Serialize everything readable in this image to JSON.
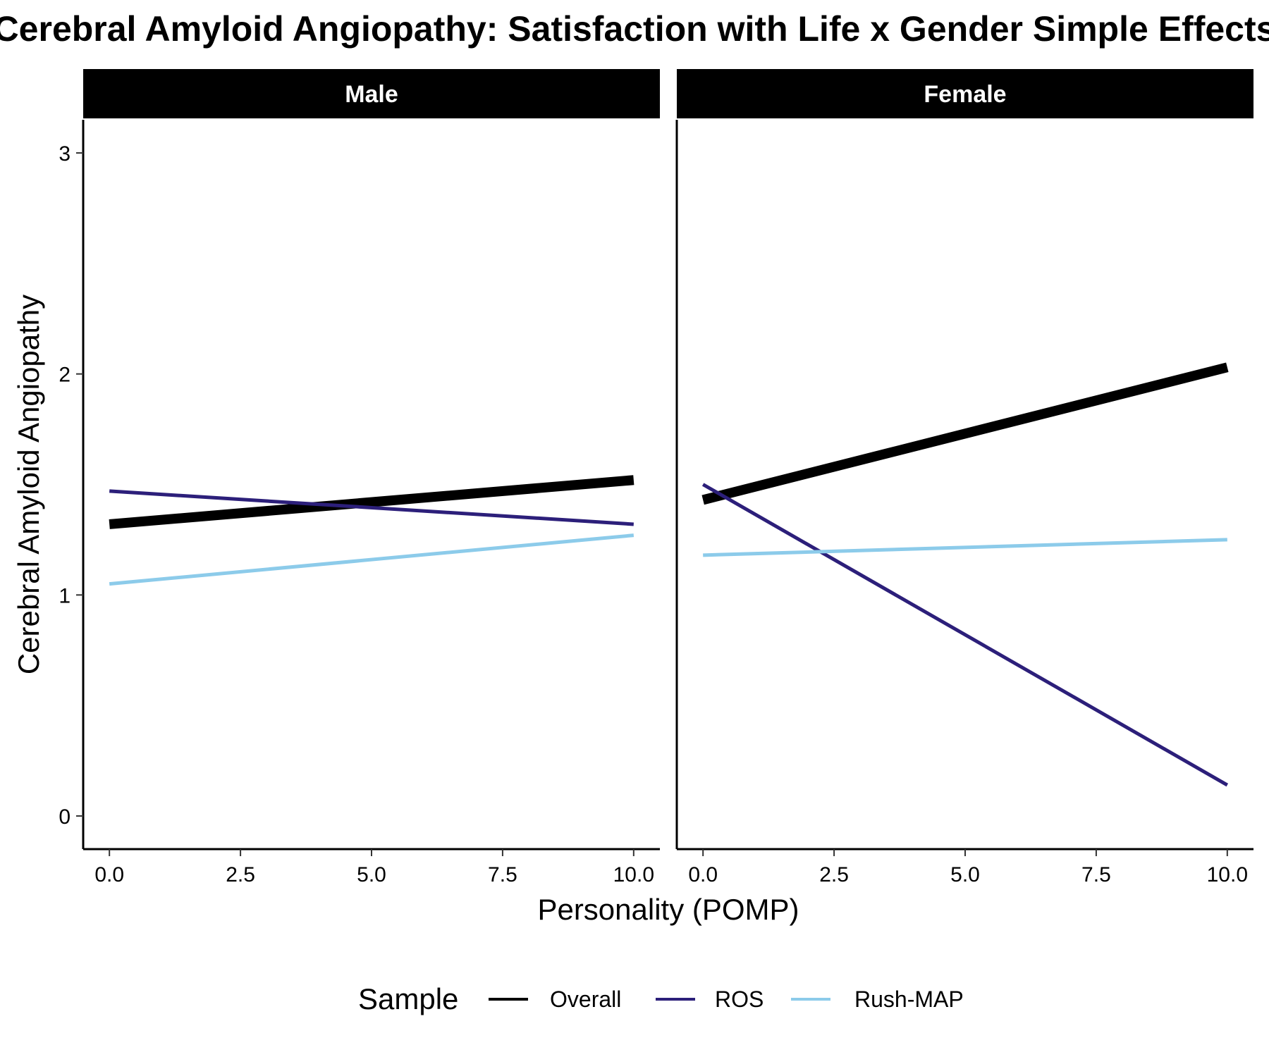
{
  "chart_data": {
    "type": "line",
    "title": "Cerebral Amyloid Angiopathy: Satisfaction with Life x Gender Simple Effects",
    "xlabel": "Personality (POMP)",
    "ylabel": "Cerebral Amyloid Angiopathy",
    "xlim": [
      -0.5,
      10.5
    ],
    "ylim": [
      -0.15,
      3.15
    ],
    "xticks": [
      0,
      2.5,
      5,
      7.5,
      10
    ],
    "xtick_labels": [
      "0.0",
      "2.5",
      "5.0",
      "7.5",
      "10.0"
    ],
    "yticks": [
      0,
      1,
      2,
      3
    ],
    "ytick_labels": [
      "0",
      "1",
      "2",
      "3"
    ],
    "grid": false,
    "legend": {
      "title": "Sample",
      "placement": "bottom",
      "entries": [
        "Overall",
        "ROS",
        "Rush-MAP"
      ]
    },
    "series_colors": {
      "Overall": "#000000",
      "ROS": "#2c1f7a",
      "Rush-MAP": "#8ccbea"
    },
    "panels": [
      {
        "label": "Male",
        "series": [
          {
            "name": "Overall",
            "x": [
              0,
              10
            ],
            "y": [
              1.32,
              1.52
            ]
          },
          {
            "name": "ROS",
            "x": [
              0,
              10
            ],
            "y": [
              1.47,
              1.32
            ]
          },
          {
            "name": "Rush-MAP",
            "x": [
              0,
              10
            ],
            "y": [
              1.05,
              1.27
            ]
          }
        ]
      },
      {
        "label": "Female",
        "series": [
          {
            "name": "Overall",
            "x": [
              0,
              10
            ],
            "y": [
              1.43,
              2.03
            ]
          },
          {
            "name": "ROS",
            "x": [
              0,
              10
            ],
            "y": [
              1.5,
              0.14
            ]
          },
          {
            "name": "Rush-MAP",
            "x": [
              0,
              10
            ],
            "y": [
              1.18,
              1.25
            ]
          }
        ]
      }
    ]
  }
}
